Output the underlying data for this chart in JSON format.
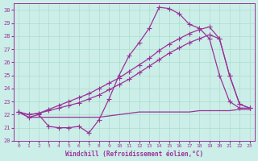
{
  "xlabel": "Windchill (Refroidissement éolien,°C)",
  "background_color": "#cceee8",
  "grid_color": "#aaddcc",
  "line_color": "#993399",
  "xlim": [
    -0.5,
    23.5
  ],
  "ylim": [
    20,
    30.5
  ],
  "xticks": [
    0,
    1,
    2,
    3,
    4,
    5,
    6,
    7,
    8,
    9,
    10,
    11,
    12,
    13,
    14,
    15,
    16,
    17,
    18,
    19,
    20,
    21,
    22,
    23
  ],
  "yticks": [
    20,
    21,
    22,
    23,
    24,
    25,
    26,
    27,
    28,
    29,
    30
  ],
  "series": [
    {
      "y": [
        22.2,
        21.8,
        22.0,
        21.1,
        21.0,
        21.0,
        21.1,
        20.6,
        21.6,
        23.2,
        25.0,
        26.5,
        27.5,
        28.6,
        30.2,
        30.1,
        29.7,
        28.9,
        28.6,
        27.8,
        25.0,
        23.0,
        22.5,
        22.5
      ],
      "marker": true
    },
    {
      "y": [
        22.2,
        22.0,
        22.1,
        22.3,
        22.5,
        22.7,
        22.9,
        23.2,
        23.5,
        23.9,
        24.3,
        24.7,
        25.2,
        25.7,
        26.2,
        26.7,
        27.1,
        27.5,
        27.8,
        28.1,
        27.8,
        25.0,
        22.8,
        22.5
      ],
      "marker": true
    },
    {
      "y": [
        22.2,
        22.0,
        22.1,
        22.4,
        22.7,
        23.0,
        23.3,
        23.6,
        24.0,
        24.4,
        24.8,
        25.3,
        25.8,
        26.3,
        26.9,
        27.4,
        27.8,
        28.2,
        28.5,
        28.7,
        27.8,
        25.0,
        22.8,
        22.5
      ],
      "marker": true
    },
    {
      "y": [
        22.2,
        21.8,
        21.8,
        21.8,
        21.8,
        21.8,
        21.8,
        21.8,
        21.8,
        21.9,
        22.0,
        22.1,
        22.2,
        22.2,
        22.2,
        22.2,
        22.2,
        22.2,
        22.3,
        22.3,
        22.3,
        22.3,
        22.4,
        22.4
      ],
      "marker": false
    }
  ],
  "marker_symbol": "+",
  "marker_size": 4,
  "linewidth": 0.9
}
